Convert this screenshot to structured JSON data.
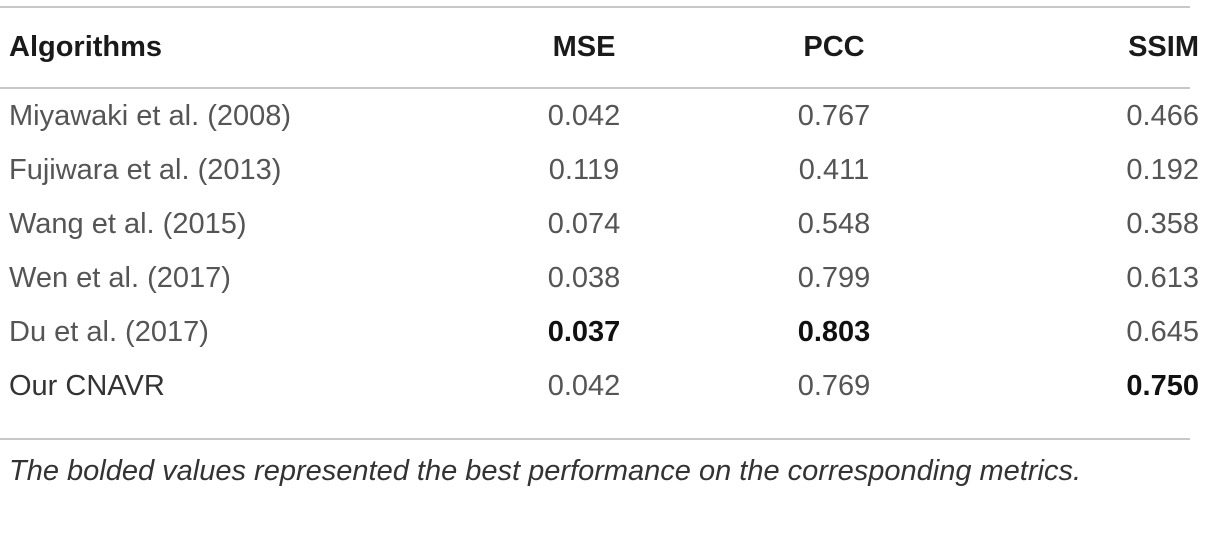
{
  "table": {
    "headers": [
      "Algorithms",
      "MSE",
      "PCC",
      "SSIM"
    ],
    "rows": [
      {
        "algorithm": "Miyawaki et al. (2008)",
        "mse": "0.042",
        "pcc": "0.767",
        "ssim": "0.466"
      },
      {
        "algorithm": "Fujiwara et al. (2013)",
        "mse": "0.119",
        "pcc": "0.411",
        "ssim": "0.192"
      },
      {
        "algorithm": "Wang et al. (2015)",
        "mse": "0.074",
        "pcc": "0.548",
        "ssim": "0.358"
      },
      {
        "algorithm": "Wen et al. (2017)",
        "mse": "0.038",
        "pcc": "0.799",
        "ssim": "0.613"
      },
      {
        "algorithm": "Du et al. (2017)",
        "mse": "0.037",
        "pcc": "0.803",
        "ssim": "0.645"
      },
      {
        "algorithm": "Our CNAVR",
        "mse": "0.042",
        "pcc": "0.769",
        "ssim": "0.750"
      }
    ],
    "bold_cells": {
      "mse": "Du et al. (2017)",
      "pcc": "Du et al. (2017)",
      "ssim": "Our CNAVR"
    }
  },
  "footnote": "The bolded values represented the best performance on the corresponding metrics."
}
